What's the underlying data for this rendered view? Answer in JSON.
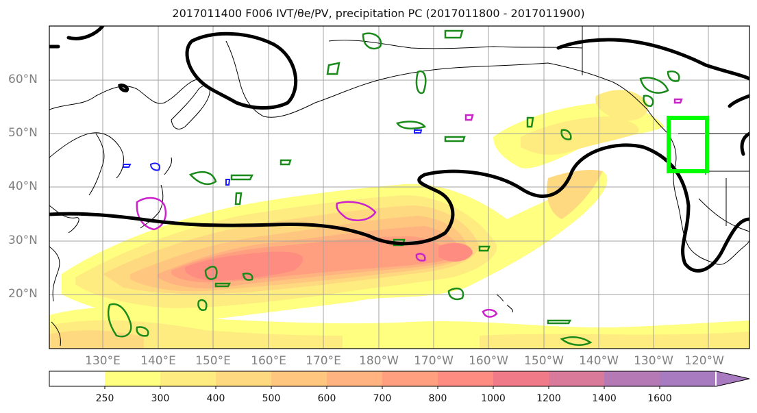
{
  "title": "2017011400 F006 IVT/θe/PV, precipitation PC (2017011800 - 2017011900)",
  "lat_labels": [
    "60°N",
    "50°N",
    "40°N",
    "30°N",
    "20°N"
  ],
  "lon_labels": [
    "130°E",
    "140°E",
    "150°E",
    "160°E",
    "170°E",
    "180°W",
    "170°W",
    "160°W",
    "150°W",
    "140°W",
    "130°W",
    "120°W"
  ],
  "colorbar": {
    "ticks": [
      "250",
      "300",
      "400",
      "500",
      "600",
      "700",
      "800",
      "1000",
      "1200",
      "1400",
      "1600"
    ],
    "colors": [
      "#ffffff",
      "#ffff80",
      "#ffec80",
      "#ffd980",
      "#ffc680",
      "#ffb380",
      "#ff9f80",
      "#ff8c80",
      "#f07a88",
      "#d97a9a",
      "#b57ab5",
      "#a87ac0"
    ]
  },
  "colors": {
    "ivt_low": "#ffff80",
    "ivt_mid": "#ffc680",
    "ivt_high": "#ff8c80",
    "theta_e_contour": "#000000",
    "pv_contour_green": "#1a8a1a",
    "pv_contour_magenta": "#cc22cc",
    "pv_contour_blue": "#1a1aff",
    "precip_box": "#00ff00",
    "coastline": "#000000",
    "grid": "#a0a0a0"
  }
}
